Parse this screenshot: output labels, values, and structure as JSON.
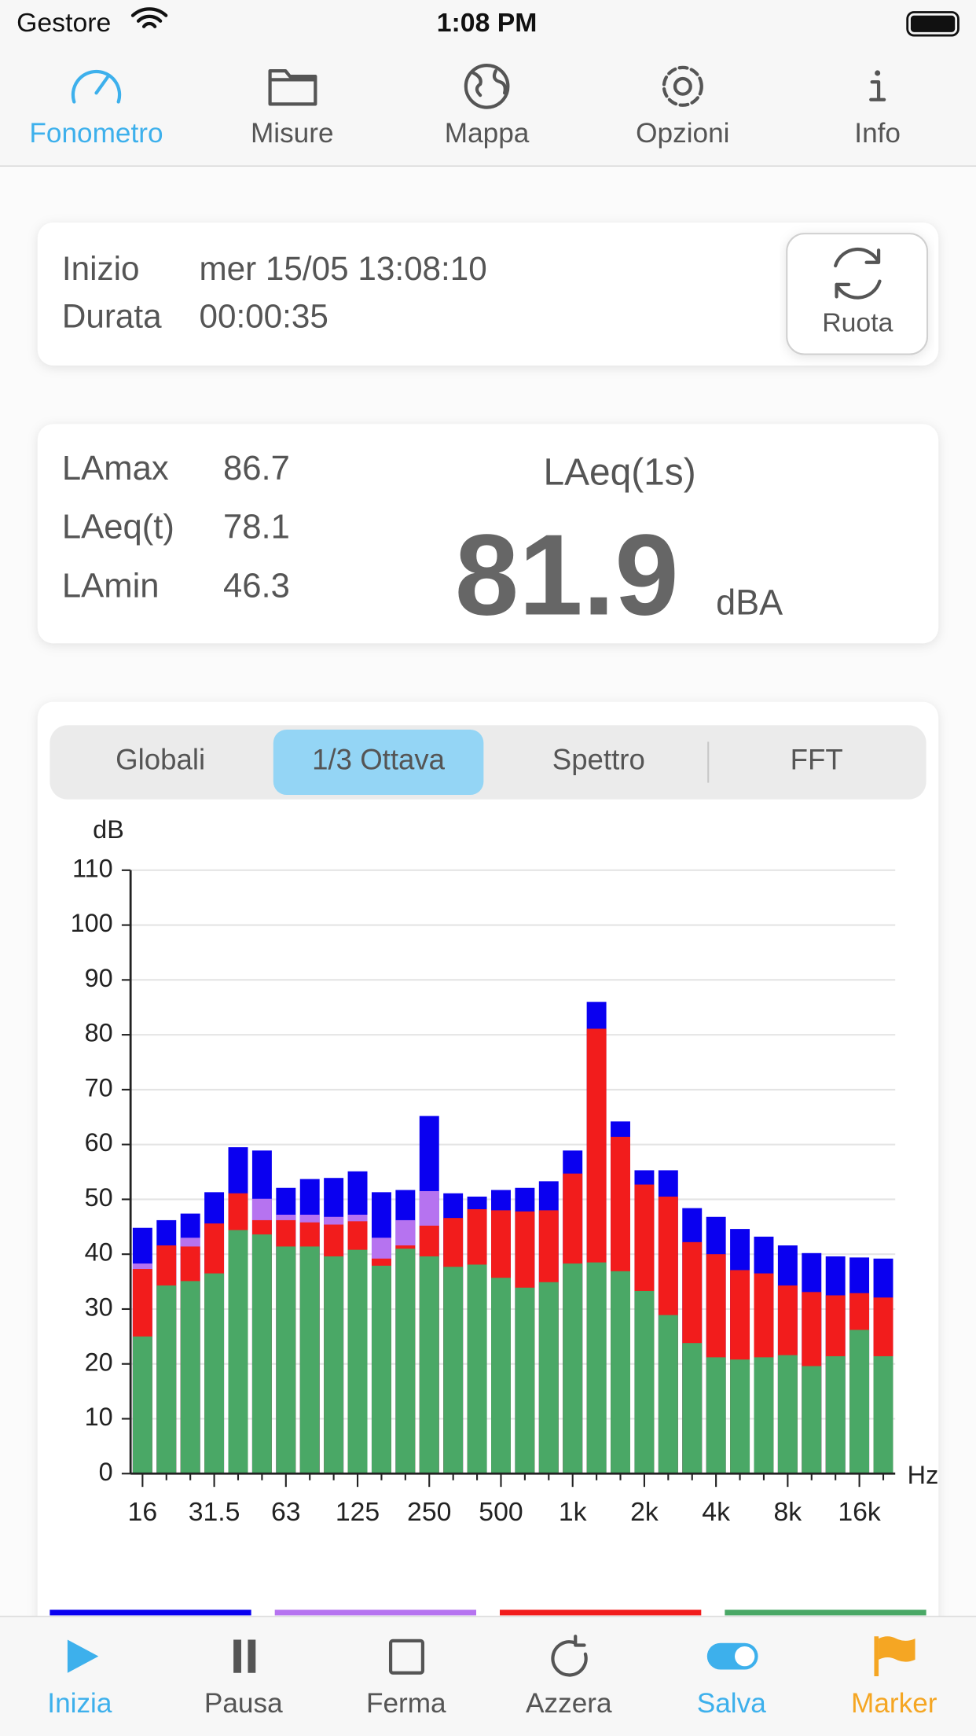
{
  "status": {
    "carrier": "Gestore",
    "time": "1:08 PM"
  },
  "tabs": [
    "Fonometro",
    "Misure",
    "Mappa",
    "Opzioni",
    "Info"
  ],
  "session": {
    "start_label": "Inizio",
    "start": "mer 15/05 13:08:10",
    "duration_label": "Durata",
    "duration": "00:00:35",
    "button": "Ruota"
  },
  "levels": [
    {
      "label": "LAmax",
      "value": 86.7
    },
    {
      "label": "LAeq(t)",
      "value": 78.1
    },
    {
      "label": "LAmin",
      "value": 46.3
    }
  ],
  "current": {
    "label": "LAeq(1s)",
    "value": 81.9,
    "unit": "dBA"
  },
  "segments": [
    "Globali",
    "1/3 Ottava",
    "Spettro",
    "FFT"
  ],
  "toolbar": [
    "Inizia",
    "Pausa",
    "Ferma",
    "Azzera",
    "Salva",
    "Marker"
  ],
  "chart_data": {
    "type": "bar",
    "ylabel": "dB",
    "xlabel": "Hz",
    "categories": [
      "16",
      null,
      null,
      "31.5",
      null,
      null,
      "63",
      null,
      null,
      "125",
      null,
      null,
      "250",
      null,
      null,
      "500",
      null,
      null,
      "1k",
      null,
      null,
      "2k",
      null,
      null,
      "4k",
      null,
      null,
      "8k",
      null,
      null,
      "16k",
      null
    ],
    "series": [
      {
        "color": "#0a00f0",
        "values": [
          44.8,
          46.2,
          47.4,
          51.3,
          59.5,
          58.9,
          52.1,
          53.7,
          53.9,
          55.1,
          51.3,
          51.7,
          65.2,
          51.1,
          50.5,
          51.7,
          52.1,
          53.3,
          58.9,
          86.0,
          64.2,
          55.3,
          55.3,
          48.4,
          46.8,
          44.6,
          43.2,
          41.6,
          40.2,
          39.6,
          39.4,
          39.2
        ]
      },
      {
        "color": "#b673f0",
        "values": [
          38.3,
          null,
          43.0,
          null,
          null,
          50.1,
          47.2,
          47.2,
          46.8,
          47.2,
          43.0,
          46.2,
          51.5,
          null,
          null,
          null,
          null,
          null,
          null,
          null,
          null,
          null,
          null,
          null,
          null,
          null,
          null,
          null,
          null,
          null,
          null,
          null
        ]
      },
      {
        "color": "#f21c1c",
        "values": [
          37.3,
          41.6,
          41.4,
          45.6,
          51.1,
          46.2,
          46.2,
          45.8,
          45.4,
          46.0,
          39.2,
          41.6,
          45.2,
          46.6,
          48.2,
          48.0,
          47.8,
          48.0,
          54.7,
          81.1,
          61.4,
          52.7,
          50.5,
          42.2,
          40.0,
          37.1,
          36.5,
          34.3,
          33.1,
          32.5,
          32.9,
          32.1
        ]
      },
      {
        "color": "#4aa866",
        "values": [
          25.0,
          34.3,
          35.1,
          36.5,
          44.4,
          43.6,
          41.4,
          41.4,
          39.6,
          40.8,
          37.9,
          41.0,
          39.6,
          37.7,
          38.1,
          35.7,
          33.9,
          34.9,
          38.3,
          38.5,
          36.9,
          33.3,
          28.9,
          23.8,
          21.2,
          20.8,
          21.2,
          21.6,
          19.6,
          21.4,
          26.2,
          21.4
        ]
      }
    ],
    "ylim": [
      0,
      110
    ],
    "yticks": [
      0,
      10,
      20,
      30,
      40,
      50,
      60,
      70,
      80,
      90,
      100,
      110
    ],
    "grid": true
  }
}
